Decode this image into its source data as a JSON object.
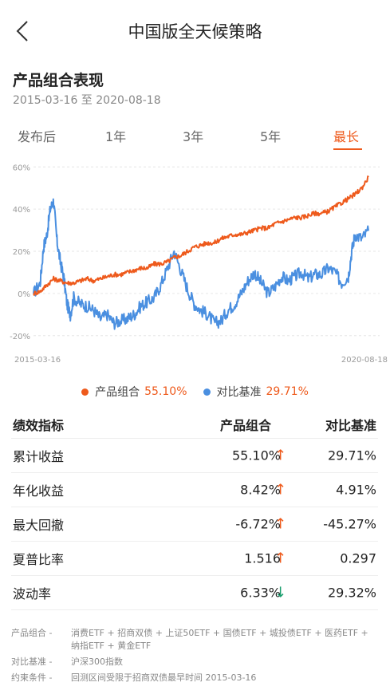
{
  "nav": {
    "title": "中国版全天候策略"
  },
  "section": {
    "title": "产品组合表现",
    "date_range": "2015-03-16 至 2020-08-18"
  },
  "tabs": [
    {
      "label": "发布后",
      "active": false
    },
    {
      "label": "1年",
      "active": false
    },
    {
      "label": "3年",
      "active": false
    },
    {
      "label": "5年",
      "active": false
    },
    {
      "label": "最长",
      "active": true
    }
  ],
  "colors": {
    "accent": "#ee5a1c",
    "portfolio": "#ee5a1c",
    "benchmark": "#4a8fe0",
    "down": "#1a9e6e"
  },
  "chart_data": {
    "type": "line",
    "x_start": "2015-03-16",
    "x_end": "2020-08-18",
    "x_tick_labels": [
      "2015-03-16",
      "2020-08-18"
    ],
    "y_tick_labels": [
      "60%",
      "40%",
      "20%",
      "0%",
      "-20%"
    ],
    "ylim": [
      -25,
      62
    ],
    "grid": true,
    "series": [
      {
        "name": "产品组合",
        "color": "#ee5a1c",
        "t": [
          0,
          0.02,
          0.04,
          0.06,
          0.08,
          0.1,
          0.12,
          0.14,
          0.16,
          0.18,
          0.2,
          0.22,
          0.24,
          0.26,
          0.28,
          0.3,
          0.32,
          0.34,
          0.36,
          0.38,
          0.4,
          0.42,
          0.44,
          0.46,
          0.48,
          0.5,
          0.52,
          0.54,
          0.56,
          0.58,
          0.6,
          0.62,
          0.64,
          0.66,
          0.68,
          0.7,
          0.72,
          0.74,
          0.76,
          0.78,
          0.8,
          0.82,
          0.84,
          0.86,
          0.88,
          0.9,
          0.92,
          0.94,
          0.96,
          0.98,
          1.0
        ],
        "values": [
          0,
          1,
          4,
          7,
          6,
          5,
          5,
          6,
          7,
          6,
          7,
          8,
          9,
          9,
          10,
          11,
          12,
          12,
          14,
          14,
          15,
          17,
          18,
          20,
          22,
          23,
          24,
          24,
          26,
          27,
          28,
          28,
          29,
          30,
          31,
          31,
          33,
          34,
          35,
          36,
          36,
          37,
          38,
          38,
          39,
          41,
          43,
          45,
          47,
          50,
          55.1
        ]
      },
      {
        "name": "对比基准",
        "color": "#4a8fe0",
        "t": [
          0,
          0.02,
          0.03,
          0.04,
          0.05,
          0.06,
          0.07,
          0.08,
          0.09,
          0.1,
          0.11,
          0.12,
          0.14,
          0.16,
          0.18,
          0.2,
          0.22,
          0.24,
          0.26,
          0.28,
          0.3,
          0.32,
          0.34,
          0.36,
          0.38,
          0.4,
          0.42,
          0.44,
          0.46,
          0.48,
          0.5,
          0.52,
          0.54,
          0.56,
          0.58,
          0.6,
          0.62,
          0.64,
          0.66,
          0.68,
          0.7,
          0.72,
          0.74,
          0.76,
          0.78,
          0.8,
          0.82,
          0.84,
          0.86,
          0.88,
          0.9,
          0.92,
          0.94,
          0.95,
          0.96,
          0.98,
          1.0
        ],
        "values": [
          0,
          5,
          22,
          28,
          40,
          44,
          25,
          15,
          8,
          -5,
          -10,
          -2,
          -5,
          -6,
          -8,
          -12,
          -10,
          -14,
          -13,
          -12,
          -10,
          -6,
          -4,
          -2,
          4,
          12,
          20,
          11,
          2,
          -5,
          -8,
          -10,
          -14,
          -13,
          -8,
          -5,
          0,
          6,
          10,
          5,
          0,
          3,
          8,
          6,
          8,
          10,
          7,
          9,
          9,
          12,
          10,
          5,
          8,
          20,
          28,
          26,
          29.71
        ]
      }
    ]
  },
  "legend": {
    "portfolio": {
      "label": "产品组合",
      "value": "55.10%"
    },
    "benchmark": {
      "label": "对比基准",
      "value": "29.71%"
    }
  },
  "table": {
    "headers": {
      "name": "绩效指标",
      "portfolio": "产品组合",
      "benchmark": "对比基准"
    },
    "rows": [
      {
        "name": "累计收益",
        "portfolio": "55.10%",
        "arrow": "↑",
        "dir": "up",
        "benchmark": "29.71%"
      },
      {
        "name": "年化收益",
        "portfolio": "8.42%",
        "arrow": "↑",
        "dir": "up",
        "benchmark": "4.91%"
      },
      {
        "name": "最大回撤",
        "portfolio": "-6.72%",
        "arrow": "↑",
        "dir": "up",
        "benchmark": "-45.27%"
      },
      {
        "name": "夏普比率",
        "portfolio": "1.516",
        "arrow": "↑",
        "dir": "up",
        "benchmark": "0.297"
      },
      {
        "name": "波动率",
        "portfolio": "6.33%",
        "arrow": "↓",
        "dir": "down",
        "benchmark": "29.32%"
      }
    ]
  },
  "notes": [
    {
      "label": "产品组合 -",
      "text": "消费ETF + 招商双债 + 上证50ETF + 国债ETF + 城投债ETF + 医药ETF + 纳指ETF + 黄金ETF"
    },
    {
      "label": "对比基准 -",
      "text": "沪深300指数"
    },
    {
      "label": "约束条件 -",
      "text": "回测区间受限于招商双债最早时间 2015-03-16"
    }
  ]
}
